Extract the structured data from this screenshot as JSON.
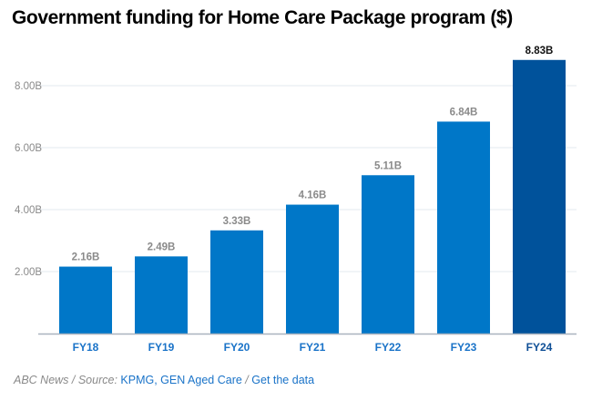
{
  "chart_data": {
    "type": "bar",
    "title": "Government funding for Home Care Package program ($)",
    "xlabel": "",
    "ylabel": "",
    "categories": [
      "FY18",
      "FY19",
      "FY20",
      "FY21",
      "FY22",
      "FY23",
      "FY24"
    ],
    "values": [
      2.16,
      2.49,
      3.33,
      4.16,
      5.11,
      6.84,
      8.83
    ],
    "value_labels": [
      "2.16B",
      "2.49B",
      "3.33B",
      "4.16B",
      "5.11B",
      "6.84B",
      "8.83B"
    ],
    "units": "billions AUD",
    "ylim": [
      0,
      9
    ],
    "yticks": [
      2,
      4,
      6,
      8
    ],
    "ytick_labels": [
      "2.00B",
      "4.00B",
      "6.00B",
      "8.00B"
    ],
    "grid": true,
    "highlight_category": "FY24",
    "colors": {
      "bar": "#0077c8",
      "bar_highlight": "#00529b",
      "grid": "#e3e8ef",
      "axis": "#a9b3bf"
    }
  },
  "footer": {
    "credit": "ABC News / Source:",
    "source_link": "KPMG, GEN Aged Care",
    "separator": "/",
    "data_link": "Get the data"
  }
}
